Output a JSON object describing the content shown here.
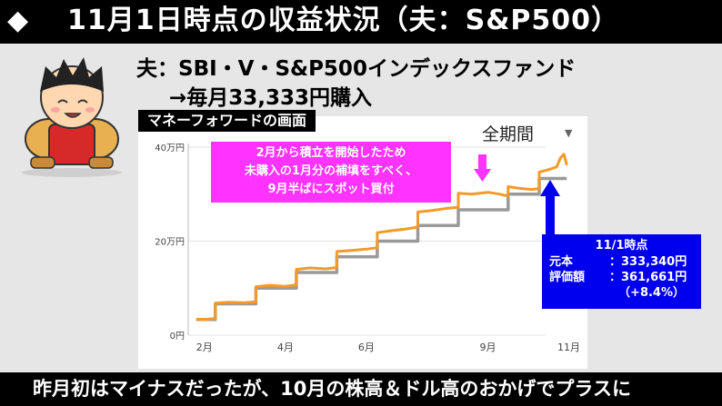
{
  "header": {
    "diamond": "◆",
    "title": "11月1日時点の収益状況（夫：S&P500）"
  },
  "fund": {
    "line1": "夫：SBI・V・S&P500インデックスファンド",
    "line2": "→毎月33,333円購入"
  },
  "panel": {
    "label": "マネーフォワードの画面",
    "period": "全期間",
    "caret": "▼"
  },
  "callouts": {
    "pink_line1": "2月から積立を開始したため",
    "pink_line2": "未購入の1月分の補填をすべく、",
    "pink_line3": "9月半ばにスポット買付",
    "blue_title": "11/1時点",
    "principal_key": "元本",
    "principal_val": "：333,340円",
    "value_key": "評価額",
    "value_val": "：361,661円",
    "gain": "（+8.4%）"
  },
  "footer": {
    "text": "昨月初はマイナスだったが、10月の株高＆ドル高のおかげでプラスに"
  },
  "colors": {
    "market": "#f39a2b",
    "principal": "#9a9a9a",
    "pink": "#ff33ff",
    "blue": "#0000ee"
  },
  "chart_data": {
    "type": "line",
    "title": "マネーフォワードの画面",
    "ylim": [
      0,
      400000
    ],
    "xlim": [
      1.6,
      11.1
    ],
    "yticks": [
      {
        "v": 0,
        "label": "0円"
      },
      {
        "v": 200000,
        "label": "20万円"
      },
      {
        "v": 400000,
        "label": "40万円"
      }
    ],
    "xticks": [
      {
        "v": 2,
        "label": "2月"
      },
      {
        "v": 4,
        "label": "4月"
      },
      {
        "v": 6,
        "label": "6月"
      },
      {
        "v": 9,
        "label": "9月"
      },
      {
        "v": 11,
        "label": "11月"
      }
    ],
    "series": [
      {
        "name": "元本",
        "points": [
          [
            1.8,
            33333
          ],
          [
            2.27,
            33333
          ],
          [
            2.27,
            66666
          ],
          [
            3.27,
            66666
          ],
          [
            3.27,
            100000
          ],
          [
            4.27,
            100000
          ],
          [
            4.27,
            133333
          ],
          [
            5.27,
            133333
          ],
          [
            5.27,
            166666
          ],
          [
            6.27,
            166666
          ],
          [
            6.27,
            200000
          ],
          [
            7.27,
            200000
          ],
          [
            7.27,
            233333
          ],
          [
            8.27,
            233333
          ],
          [
            8.27,
            266666
          ],
          [
            9.5,
            266666
          ],
          [
            9.5,
            300000
          ],
          [
            10.27,
            300000
          ],
          [
            10.27,
            333340
          ],
          [
            10.95,
            333340
          ]
        ]
      },
      {
        "name": "評価額",
        "points": [
          [
            1.8,
            34000
          ],
          [
            2.0,
            33000
          ],
          [
            2.2,
            35000
          ],
          [
            2.27,
            36000
          ],
          [
            2.27,
            68000
          ],
          [
            2.6,
            70000
          ],
          [
            3.0,
            69000
          ],
          [
            3.27,
            71000
          ],
          [
            3.27,
            103000
          ],
          [
            3.6,
            106000
          ],
          [
            4.0,
            104000
          ],
          [
            4.27,
            107000
          ],
          [
            4.27,
            140000
          ],
          [
            4.6,
            143000
          ],
          [
            5.0,
            141000
          ],
          [
            5.27,
            144000
          ],
          [
            5.27,
            178000
          ],
          [
            5.6,
            180000
          ],
          [
            6.0,
            183000
          ],
          [
            6.27,
            186000
          ],
          [
            6.27,
            218000
          ],
          [
            6.6,
            222000
          ],
          [
            7.0,
            226000
          ],
          [
            7.27,
            230000
          ],
          [
            7.27,
            262000
          ],
          [
            7.6,
            265000
          ],
          [
            8.0,
            270000
          ],
          [
            8.27,
            272000
          ],
          [
            8.27,
            302000
          ],
          [
            8.6,
            300000
          ],
          [
            9.0,
            304000
          ],
          [
            9.3,
            300000
          ],
          [
            9.5,
            296000
          ],
          [
            9.5,
            316000
          ],
          [
            9.8,
            312000
          ],
          [
            10.1,
            310000
          ],
          [
            10.27,
            312000
          ],
          [
            10.27,
            347000
          ],
          [
            10.5,
            352000
          ],
          [
            10.7,
            358000
          ],
          [
            10.8,
            378000
          ],
          [
            10.88,
            385000
          ],
          [
            10.95,
            361661
          ]
        ]
      }
    ]
  }
}
